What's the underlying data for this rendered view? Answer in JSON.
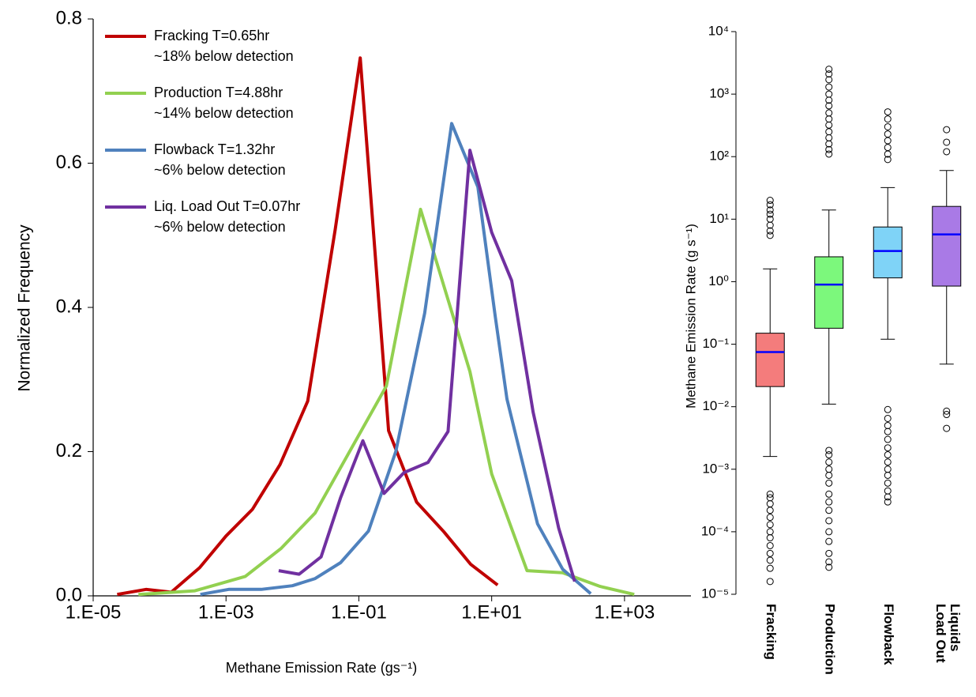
{
  "chart_data": [
    {
      "type": "line",
      "x_label": "Methane Emission Rate (gs⁻¹)",
      "y_label": "Normalized Frequency",
      "log_x": true,
      "xlim": [
        1e-05,
        10000
      ],
      "xticks": [
        {
          "value": 1e-05,
          "label": "1.E-05"
        },
        {
          "value": 0.001,
          "label": "1.E-03"
        },
        {
          "value": 0.1,
          "label": "1.E-01"
        },
        {
          "value": 10,
          "label": "1.E+01"
        },
        {
          "value": 1000,
          "label": "1.E+03"
        }
      ],
      "ylim": [
        0,
        0.8
      ],
      "yticks": [
        {
          "value": 0,
          "label": "0.0"
        },
        0.2,
        0.4,
        0.6,
        0.8
      ],
      "legend": "upper left",
      "series": [
        {
          "name": "Fracking T=0.65hr",
          "note": "~18% below detection",
          "color": "#c00000",
          "x": [
            2.3e-05,
            6.3e-05,
            0.00015,
            0.0004,
            0.001,
            0.0025,
            0.0065,
            0.017,
            0.044,
            0.105,
            0.28,
            0.74,
            1.9,
            4.8,
            12.3
          ],
          "values": [
            0.002,
            0.009,
            0.005,
            0.039,
            0.083,
            0.12,
            0.182,
            0.27,
            0.508,
            0.746,
            0.229,
            0.13,
            0.089,
            0.044,
            0.015
          ]
        },
        {
          "name": "Production T=4.88hr",
          "note": "~14% below detection",
          "color": "#92d050",
          "x": [
            4.8e-05,
            0.00034,
            0.00195,
            0.0068,
            0.022,
            0.26,
            0.85,
            4.7,
            10,
            34,
            117,
            430,
            1400
          ],
          "values": [
            0.002,
            0.007,
            0.027,
            0.066,
            0.115,
            0.291,
            0.536,
            0.311,
            0.169,
            0.035,
            0.032,
            0.013,
            0.002
          ]
        },
        {
          "name": "Flowback T=1.32hr",
          "note": "~6% below detection",
          "color": "#4f81bd",
          "x": [
            0.00041,
            0.0011,
            0.0034,
            0.01,
            0.022,
            0.053,
            0.14,
            0.36,
            0.98,
            2.5,
            6.2,
            11.3,
            17,
            49,
            117,
            310
          ],
          "values": [
            0.002,
            0.009,
            0.009,
            0.014,
            0.024,
            0.046,
            0.09,
            0.2,
            0.392,
            0.655,
            0.567,
            0.388,
            0.273,
            0.1,
            0.037,
            0.003
          ]
        },
        {
          "name": "Liq. Load Out T=0.07hr",
          "note": "~6% below detection",
          "color": "#7030a0",
          "x": [
            0.0062,
            0.0126,
            0.027,
            0.053,
            0.115,
            0.24,
            0.48,
            1.1,
            2.2,
            4.7,
            10,
            20,
            42,
            102,
            178
          ],
          "values": [
            0.035,
            0.03,
            0.054,
            0.136,
            0.215,
            0.142,
            0.171,
            0.185,
            0.228,
            0.618,
            0.504,
            0.437,
            0.255,
            0.094,
            0.02
          ]
        }
      ]
    },
    {
      "type": "box",
      "y_label": "Methane Emission Rate (g s⁻¹)",
      "log_y": true,
      "ylim": [
        1e-05,
        10000
      ],
      "yticks": [
        {
          "value": 1e-05,
          "label": "10⁻⁵"
        },
        {
          "value": 0.0001,
          "label": "10⁻⁴"
        },
        {
          "value": 0.001,
          "label": "10⁻³"
        },
        {
          "value": 0.01,
          "label": "10⁻²"
        },
        {
          "value": 0.1,
          "label": "10⁻¹"
        },
        {
          "value": 1,
          "label": "10⁰"
        },
        {
          "value": 10,
          "label": "10¹"
        },
        {
          "value": 100,
          "label": "10²"
        },
        {
          "value": 1000,
          "label": "10³"
        },
        {
          "value": 10000,
          "label": "10⁴"
        }
      ],
      "categories": [
        "Fracking",
        "Production",
        "Flowback",
        "Liquids\nLoad Out"
      ],
      "median_color": "#0000ff",
      "boxes": [
        {
          "color": "#f47c7c",
          "whisker_low": 0.0016,
          "q1": 0.021,
          "median": 0.075,
          "q3": 0.15,
          "whisker_high": 1.6,
          "outliers": [
            1.6e-05,
            2.6e-05,
            3.5e-05,
            4.5e-05,
            6e-05,
            8e-05,
            0.0001,
            0.00013,
            0.00017,
            0.00022,
            0.00028,
            0.00035,
            0.0004,
            5.5,
            6.5,
            8,
            10,
            12,
            14,
            17,
            20
          ]
        },
        {
          "color": "#7cf87c",
          "whisker_low": 0.011,
          "q1": 0.18,
          "median": 0.9,
          "q3": 2.5,
          "whisker_high": 14,
          "outliers": [
            2.7e-05,
            3.3e-05,
            4.5e-05,
            7e-05,
            0.0001,
            0.00015,
            0.00022,
            0.0003,
            0.0004,
            0.0006,
            0.0008,
            0.001,
            0.0013,
            0.0017,
            0.002,
            110,
            130,
            160,
            200,
            250,
            320,
            400,
            500,
            650,
            800,
            1000,
            1300,
            1700,
            2100,
            2500
          ]
        },
        {
          "color": "#7fd3f7",
          "whisker_low": 0.12,
          "q1": 1.15,
          "median": 3.1,
          "q3": 7.5,
          "whisker_high": 32,
          "outliers": [
            0.0003,
            0.00036,
            0.00045,
            0.0006,
            0.0008,
            0.001,
            0.0013,
            0.0017,
            0.0022,
            0.003,
            0.004,
            0.005,
            0.0065,
            0.009,
            90,
            110,
            140,
            180,
            230,
            300,
            400,
            520
          ]
        },
        {
          "color": "#a97ae6",
          "whisker_low": 0.048,
          "q1": 0.85,
          "median": 5.7,
          "q3": 16,
          "whisker_high": 60,
          "outliers": [
            0.0045,
            0.0075,
            0.0085,
            120,
            170,
            270
          ]
        }
      ]
    }
  ]
}
